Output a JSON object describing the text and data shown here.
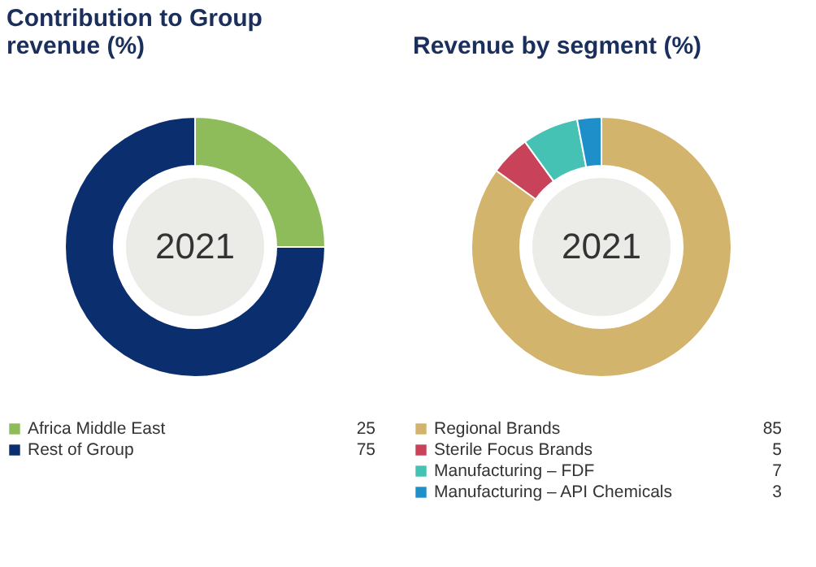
{
  "chart_data": [
    {
      "type": "donut",
      "title": "Contribution to Group revenue (%)",
      "categories": [
        "Africa Middle East",
        "Rest of Group"
      ],
      "values": [
        25,
        75
      ],
      "colors": [
        "#8fbc5a",
        "#0b2e6f"
      ],
      "data_labels": true,
      "legend": "bottom",
      "annotations": [
        "2021"
      ]
    },
    {
      "type": "donut",
      "title": "Revenue by segment (%)",
      "categories": [
        "Regional Brands",
        "Sterile Focus Brands",
        "Manufacturing – FDF",
        "Manufacturing – API Chemicals"
      ],
      "values": [
        85,
        5,
        7,
        3
      ],
      "colors": [
        "#d3b46c",
        "#c8435a",
        "#45c2b4",
        "#1f8fc9"
      ],
      "data_labels": true,
      "legend": "bottom",
      "annotations": [
        "2021"
      ]
    }
  ]
}
